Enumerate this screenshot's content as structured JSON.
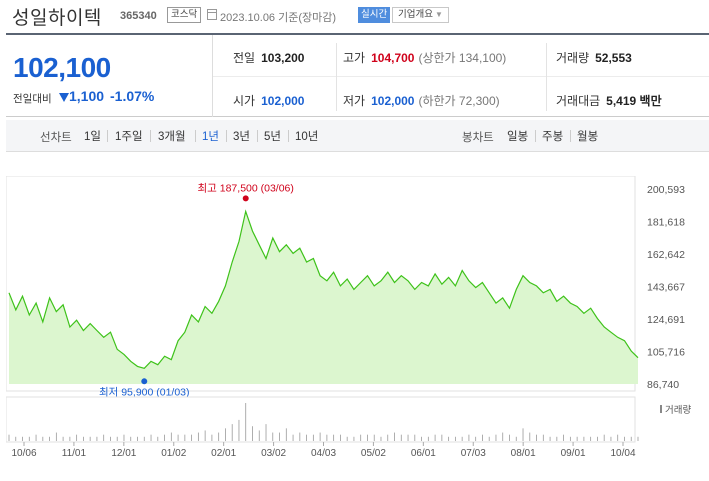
{
  "header": {
    "stock_name": "성일하이텍",
    "stock_code": "365340",
    "market": "코스닥",
    "date": "2023.10.06",
    "date_basis": "기준(장마감)",
    "realtime_label": "실시간",
    "company_info_label": "기업개요"
  },
  "summary": {
    "current_price": "102,100",
    "diff_label": "전일대비",
    "diff_value": "1,100",
    "diff_rate": "-1.07%",
    "direction": "down",
    "prev_close_label": "전일",
    "prev_close": "103,200",
    "high_label": "고가",
    "high": "104,700",
    "upper_limit": "(상한가 134,100)",
    "volume_label": "거래량",
    "volume": "52,553",
    "open_label": "시가",
    "open": "102,000",
    "low_label": "저가",
    "low": "102,000",
    "lower_limit": "(하한가 72,300)",
    "value_label": "거래대금",
    "value": "5,419 백만"
  },
  "tabs": {
    "line_label": "선차트",
    "line_items": [
      "1일",
      "1주일",
      "3개월",
      "1년",
      "3년",
      "5년",
      "10년"
    ],
    "line_active": "1년",
    "candle_label": "봉차트",
    "candle_items": [
      "일봉",
      "주봉",
      "월봉"
    ]
  },
  "colors": {
    "down": "#1a60d1",
    "up": "#d0021b",
    "line": "#3ec21a",
    "fill": "#dcf6cf"
  },
  "chart_data": {
    "type": "area",
    "yticks": [
      "200,593",
      "181,618",
      "162,642",
      "143,667",
      "124,691",
      "105,716",
      "86,740"
    ],
    "ylim": [
      86740,
      200593
    ],
    "xticks": [
      "10/06",
      "11/01",
      "12/01",
      "01/02",
      "02/01",
      "03/02",
      "04/03",
      "05/02",
      "06/01",
      "07/03",
      "08/01",
      "09/01",
      "10/04"
    ],
    "max_label": "최고 187,500 (03/06)",
    "min_label": "최저 95,900 (01/03)",
    "volume_label": "거래량",
    "prices": [
      140000,
      130000,
      138000,
      127000,
      134000,
      123000,
      137000,
      129000,
      133000,
      120000,
      124000,
      118000,
      122000,
      118000,
      114000,
      117000,
      107000,
      104000,
      100000,
      97000,
      95900,
      100000,
      98000,
      103000,
      101000,
      112000,
      117000,
      127000,
      123000,
      132000,
      128000,
      135000,
      144000,
      158000,
      170000,
      187500,
      176000,
      168000,
      160000,
      172000,
      164000,
      168000,
      163000,
      166000,
      158000,
      160000,
      150000,
      147000,
      152000,
      144000,
      148000,
      142000,
      146000,
      150000,
      144000,
      147000,
      152000,
      146000,
      150000,
      147000,
      142000,
      146000,
      144000,
      151000,
      145000,
      149000,
      144000,
      153000,
      147000,
      143000,
      146000,
      140000,
      134000,
      137000,
      131000,
      142000,
      150000,
      146000,
      144000,
      140000,
      142000,
      135000,
      138000,
      134000,
      132000,
      128000,
      131000,
      125000,
      120000,
      117000,
      114000,
      112000,
      106000,
      102100
    ],
    "volumes": [
      3,
      2,
      2,
      2,
      3,
      2,
      2,
      4,
      2,
      2,
      3,
      2,
      2,
      2,
      3,
      2,
      2,
      3,
      2,
      2,
      2,
      3,
      2,
      3,
      4,
      3,
      3,
      3,
      4,
      5,
      3,
      4,
      6,
      8,
      10,
      18,
      7,
      5,
      8,
      4,
      4,
      6,
      3,
      4,
      3,
      3,
      4,
      3,
      3,
      3,
      2,
      2,
      3,
      3,
      3,
      2,
      3,
      4,
      3,
      3,
      3,
      2,
      2,
      3,
      3,
      2,
      2,
      2,
      3,
      2,
      3,
      2,
      3,
      4,
      3,
      2,
      6,
      4,
      3,
      3,
      2,
      2,
      3,
      2,
      2,
      2,
      2,
      2,
      3,
      2,
      3,
      2,
      2,
      2
    ]
  }
}
